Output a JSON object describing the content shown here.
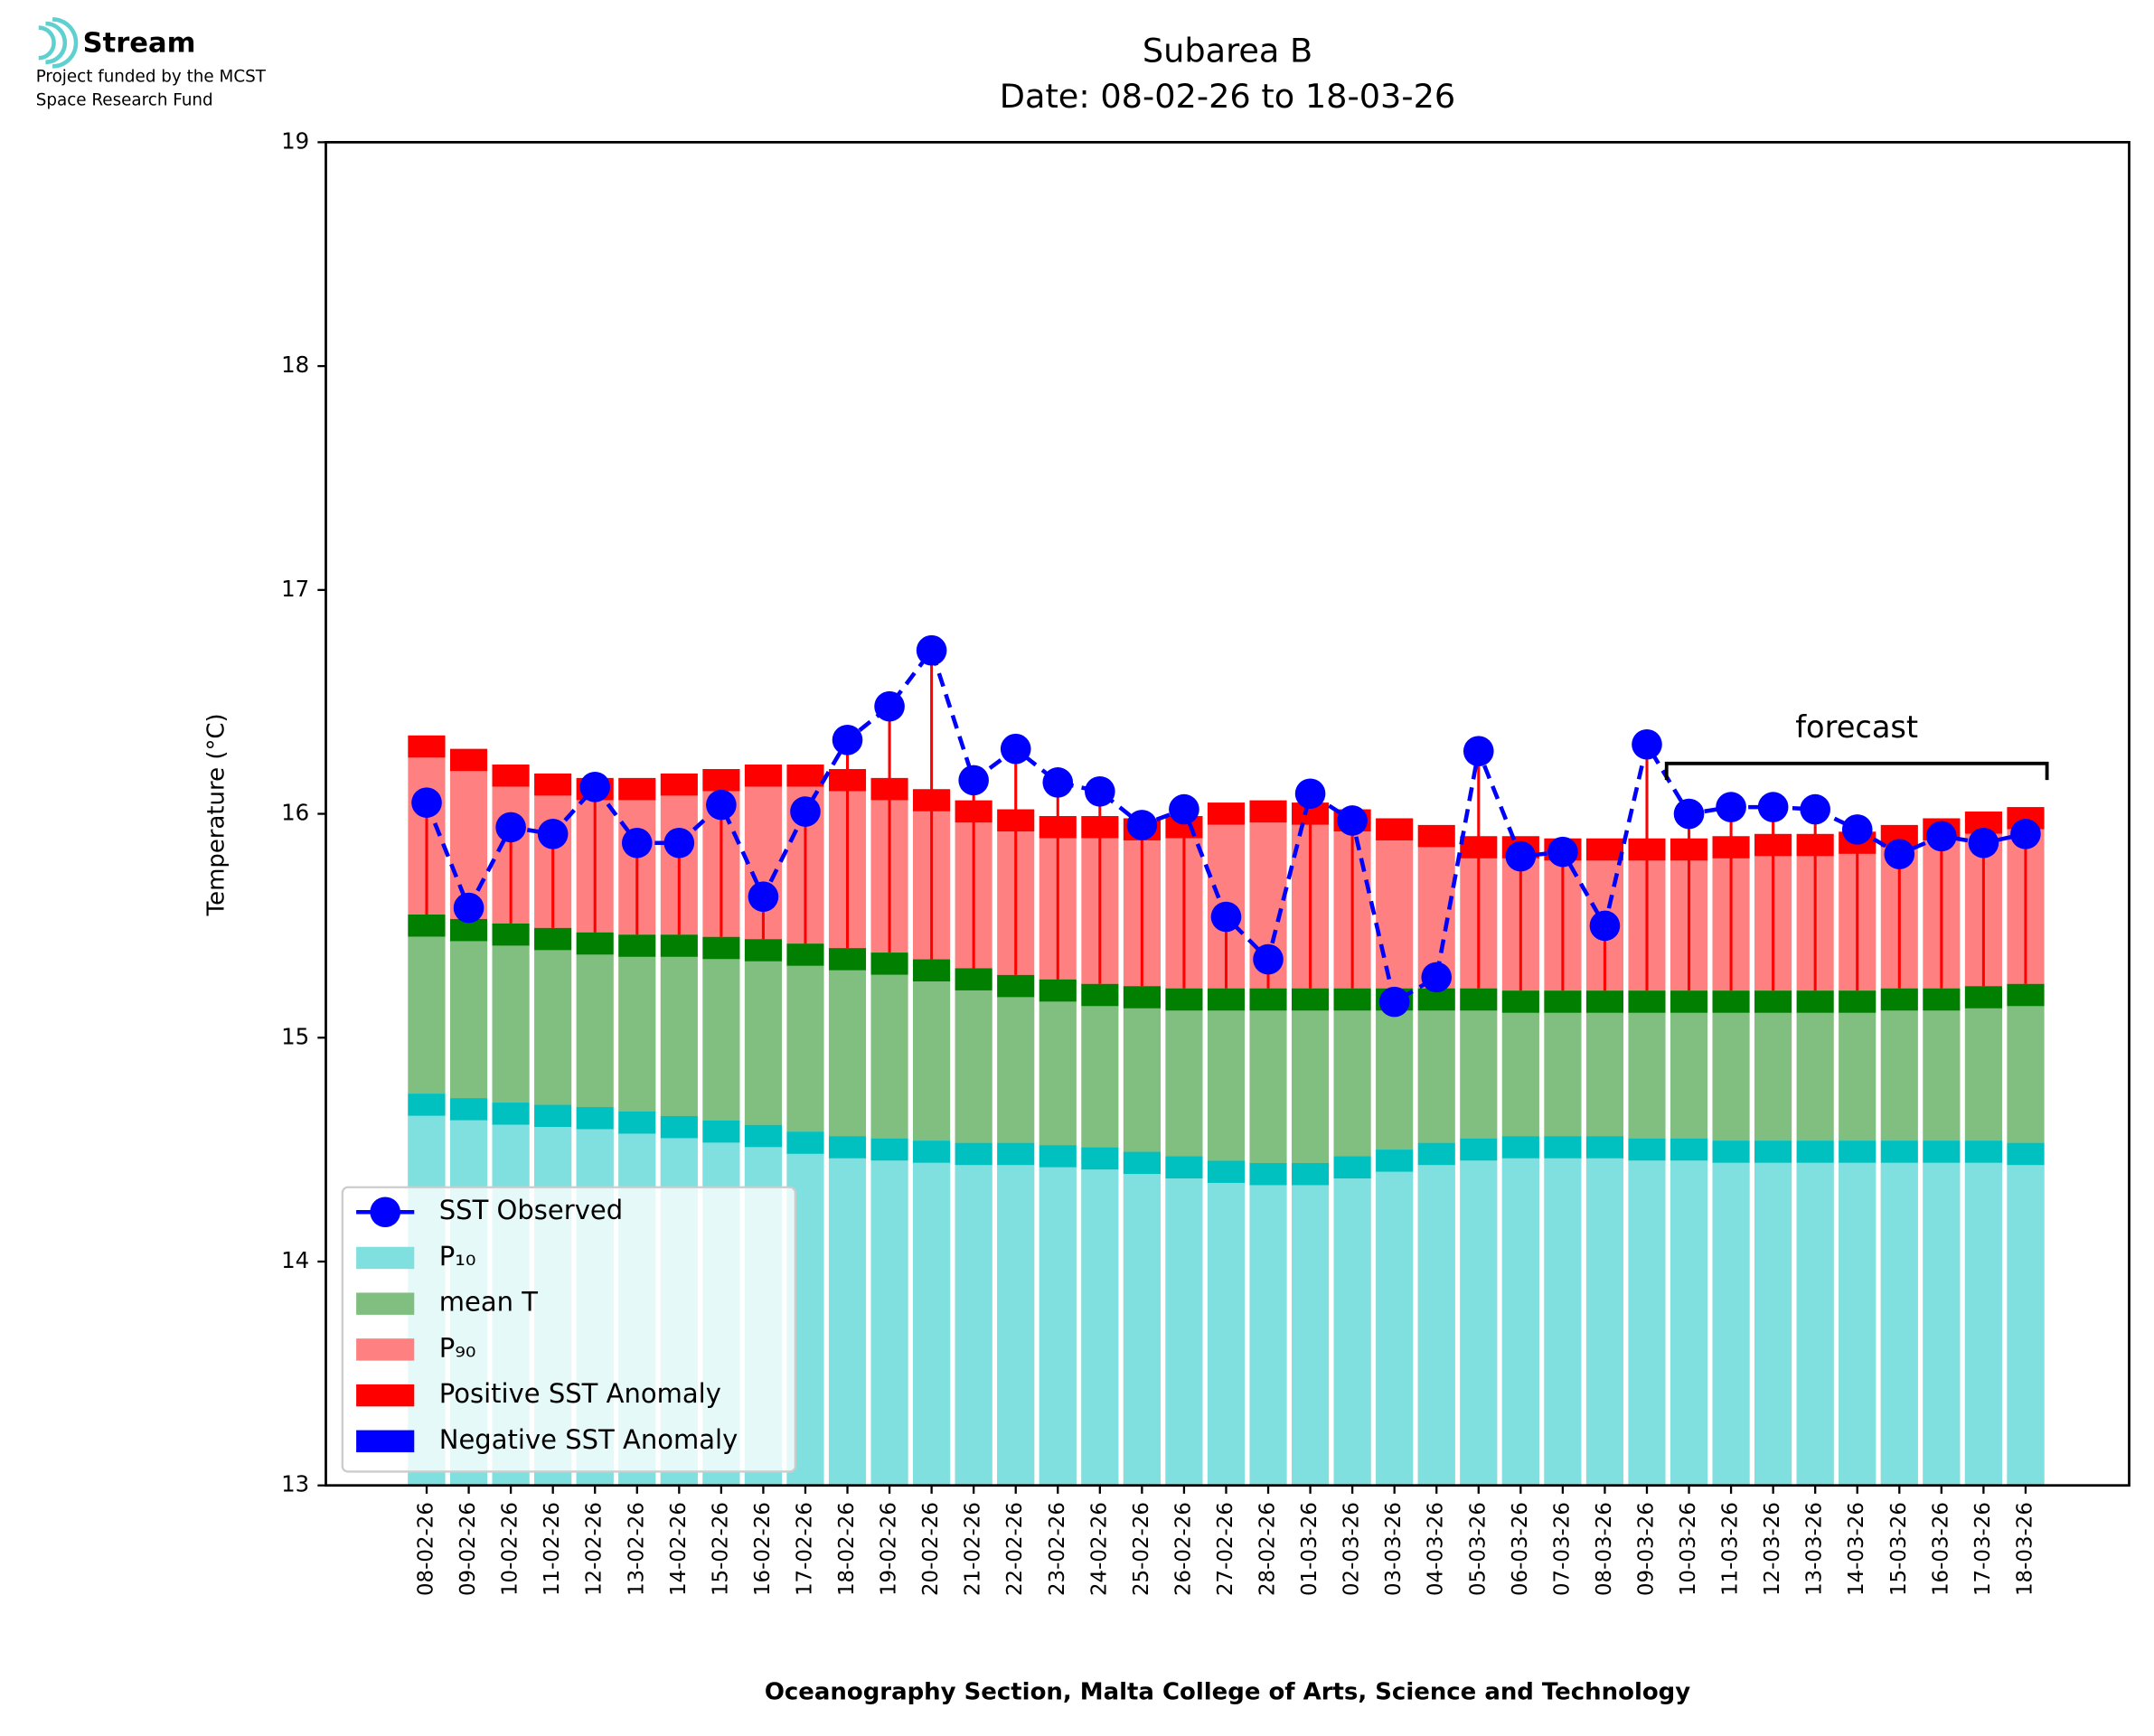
{
  "logo": {
    "name": "Stream",
    "line1": "Project funded by the MCST",
    "line2": "Space Research Fund"
  },
  "chart_data": {
    "type": "bar",
    "title": "Subarea B",
    "subtitle": "Date: 08-02-26 to 18-03-26",
    "y_label": "Temperature (°C)",
    "x_label": "Oceanography Section, Malta College of Arts, Science and Technology",
    "categories": [
      "08-02-26",
      "09-02-26",
      "10-02-26",
      "11-02-26",
      "12-02-26",
      "13-02-26",
      "14-02-26",
      "15-02-26",
      "16-02-26",
      "17-02-26",
      "18-02-26",
      "19-02-26",
      "20-02-26",
      "21-02-26",
      "22-02-26",
      "23-02-26",
      "24-02-26",
      "25-02-26",
      "26-02-26",
      "27-02-26",
      "28-02-26",
      "01-03-26",
      "02-03-26",
      "03-03-26",
      "04-03-26",
      "05-03-26",
      "06-03-26",
      "07-03-26",
      "08-03-26",
      "09-03-26",
      "10-03-26",
      "11-03-26",
      "12-03-26",
      "13-03-26",
      "14-03-26",
      "15-03-26",
      "16-03-26",
      "17-03-26",
      "18-03-26"
    ],
    "series": [
      {
        "name": "SST Observed",
        "color": "#0000ff",
        "values": [
          16.05,
          15.58,
          15.94,
          15.91,
          16.12,
          15.87,
          15.87,
          16.04,
          15.63,
          16.01,
          16.33,
          16.48,
          16.73,
          16.15,
          16.29,
          16.14,
          16.1,
          15.95,
          16.02,
          15.54,
          15.35,
          16.09,
          15.97,
          15.16,
          15.27,
          16.28,
          15.81,
          15.83,
          15.5,
          16.31,
          16.0,
          16.03,
          16.03,
          16.02,
          15.93,
          15.82,
          15.9,
          15.87,
          15.91
        ]
      },
      {
        "name": "P₁₀",
        "color": "#80dfdf",
        "edge_color": "#00c0c0",
        "values": [
          14.75,
          14.73,
          14.71,
          14.7,
          14.69,
          14.67,
          14.65,
          14.63,
          14.61,
          14.58,
          14.56,
          14.55,
          14.54,
          14.53,
          14.53,
          14.52,
          14.51,
          14.49,
          14.47,
          14.45,
          14.44,
          14.44,
          14.47,
          14.5,
          14.53,
          14.55,
          14.56,
          14.56,
          14.56,
          14.55,
          14.55,
          14.54,
          14.54,
          14.54,
          14.54,
          14.54,
          14.54,
          14.54,
          14.53
        ]
      },
      {
        "name": "mean T",
        "color": "#80bf80",
        "edge_color": "#007f00",
        "values": [
          15.55,
          15.53,
          15.51,
          15.49,
          15.47,
          15.46,
          15.46,
          15.45,
          15.44,
          15.42,
          15.4,
          15.38,
          15.35,
          15.31,
          15.28,
          15.26,
          15.24,
          15.23,
          15.22,
          15.22,
          15.22,
          15.22,
          15.22,
          15.22,
          15.22,
          15.22,
          15.21,
          15.21,
          15.21,
          15.21,
          15.21,
          15.21,
          15.21,
          15.21,
          15.21,
          15.22,
          15.22,
          15.23,
          15.24
        ]
      },
      {
        "name": "P₉₀",
        "color": "#ff8080",
        "edge_color": "#ff0000",
        "values": [
          16.35,
          16.29,
          16.22,
          16.18,
          16.16,
          16.16,
          16.18,
          16.2,
          16.22,
          16.22,
          16.2,
          16.16,
          16.11,
          16.06,
          16.02,
          15.99,
          15.99,
          15.98,
          15.99,
          16.05,
          16.06,
          16.05,
          16.02,
          15.98,
          15.95,
          15.9,
          15.9,
          15.89,
          15.89,
          15.89,
          15.89,
          15.9,
          15.91,
          15.91,
          15.92,
          15.95,
          15.98,
          16.01,
          16.03
        ]
      }
    ],
    "anomaly": {
      "positive": {
        "name": "Positive SST Anomaly",
        "color": "#ff0000"
      },
      "negative": {
        "name": "Negative SST Anomaly",
        "color": "#0000ff"
      }
    },
    "forecast": {
      "label": "forecast",
      "start": "10-03-26"
    },
    "ylim": [
      13,
      19
    ],
    "yticks": [
      13,
      14,
      15,
      16,
      17,
      18,
      19
    ],
    "legend": "lower left"
  }
}
